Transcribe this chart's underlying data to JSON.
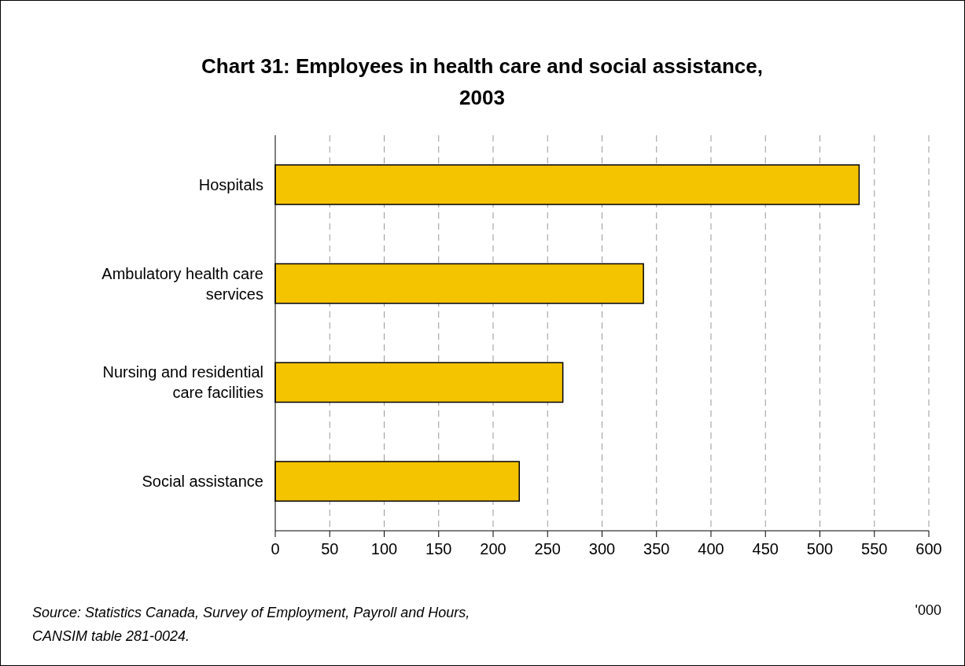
{
  "chart_data": {
    "type": "bar",
    "orientation": "horizontal",
    "title": "Chart 31: Employees in health care and social assistance, 2003",
    "xlabel": "'000",
    "categories": [
      "Hospitals",
      "Ambulatory health care services",
      "Nursing and residential care facilities",
      "Social assistance"
    ],
    "values": [
      536,
      338,
      264,
      224
    ],
    "color": "#f5c400",
    "xlim": [
      0,
      600
    ],
    "xticks": [
      0,
      50,
      100,
      150,
      200,
      250,
      300,
      350,
      400,
      450,
      500,
      550,
      600
    ],
    "grid": "x",
    "annotations": [
      "Source: Statistics Canada, Survey of Employment, Payroll and Hours, CANSIM table 281-0024."
    ]
  }
}
